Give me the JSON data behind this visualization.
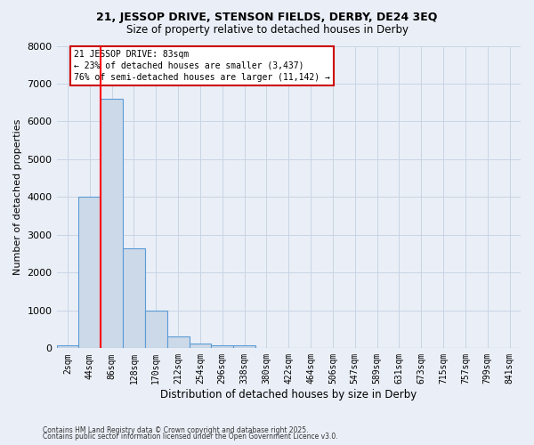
{
  "title1": "21, JESSOP DRIVE, STENSON FIELDS, DERBY, DE24 3EQ",
  "title2": "Size of property relative to detached houses in Derby",
  "xlabel": "Distribution of detached houses by size in Derby",
  "ylabel": "Number of detached properties",
  "bar_labels": [
    "2sqm",
    "44sqm",
    "86sqm",
    "128sqm",
    "170sqm",
    "212sqm",
    "254sqm",
    "296sqm",
    "338sqm",
    "380sqm",
    "422sqm",
    "464sqm",
    "506sqm",
    "547sqm",
    "589sqm",
    "631sqm",
    "673sqm",
    "715sqm",
    "757sqm",
    "799sqm",
    "841sqm"
  ],
  "bar_values": [
    80,
    4000,
    6600,
    2650,
    1000,
    320,
    120,
    80,
    80,
    0,
    0,
    0,
    0,
    0,
    0,
    0,
    0,
    0,
    0,
    0,
    0
  ],
  "bar_color": "#ccd9e8",
  "bar_edge_color": "#5b9bd5",
  "red_line_x": 1.5,
  "annotation_line1": "21 JESSOP DRIVE: 83sqm",
  "annotation_line2": "← 23% of detached houses are smaller (3,437)",
  "annotation_line3": "76% of semi-detached houses are larger (11,142) →",
  "annotation_box_color": "#ffffff",
  "annotation_box_edge": "#cc0000",
  "ylim": [
    0,
    8000
  ],
  "yticks": [
    0,
    1000,
    2000,
    3000,
    4000,
    5000,
    6000,
    7000,
    8000
  ],
  "grid_color": "#c8d4e4",
  "bg_color": "#eaeff7",
  "footer1": "Contains HM Land Registry data © Crown copyright and database right 2025.",
  "footer2": "Contains public sector information licensed under the Open Government Licence v3.0."
}
